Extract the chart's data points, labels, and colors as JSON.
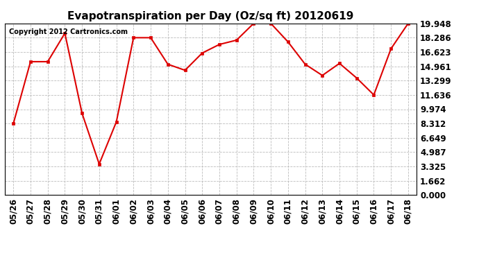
{
  "title": "Evapotranspiration per Day (Oz/sq ft) 20120619",
  "copyright": "Copyright 2012 Cartronics.com",
  "x_labels": [
    "05/26",
    "05/27",
    "05/28",
    "05/29",
    "05/30",
    "05/31",
    "06/01",
    "06/02",
    "06/03",
    "06/04",
    "06/05",
    "06/06",
    "06/07",
    "06/08",
    "06/09",
    "06/10",
    "06/11",
    "06/12",
    "06/13",
    "06/14",
    "06/15",
    "06/16",
    "06/17",
    "06/18"
  ],
  "y_values": [
    8.312,
    15.5,
    15.5,
    18.8,
    9.5,
    3.6,
    8.5,
    18.286,
    18.286,
    15.2,
    14.5,
    16.5,
    17.5,
    18.0,
    19.948,
    19.948,
    17.8,
    15.2,
    13.9,
    15.3,
    13.6,
    11.636,
    17.0,
    19.948
  ],
  "y_ticks": [
    0.0,
    1.662,
    3.325,
    4.987,
    6.649,
    8.312,
    9.974,
    11.636,
    13.299,
    14.961,
    16.623,
    18.286,
    19.948
  ],
  "y_min": 0.0,
  "y_max": 19.948,
  "line_color": "#dd0000",
  "marker_color": "#dd0000",
  "bg_color": "#ffffff",
  "plot_bg_color": "#ffffff",
  "grid_color": "#bbbbbb",
  "title_fontsize": 11,
  "tick_fontsize": 8.5,
  "copyright_fontsize": 7
}
